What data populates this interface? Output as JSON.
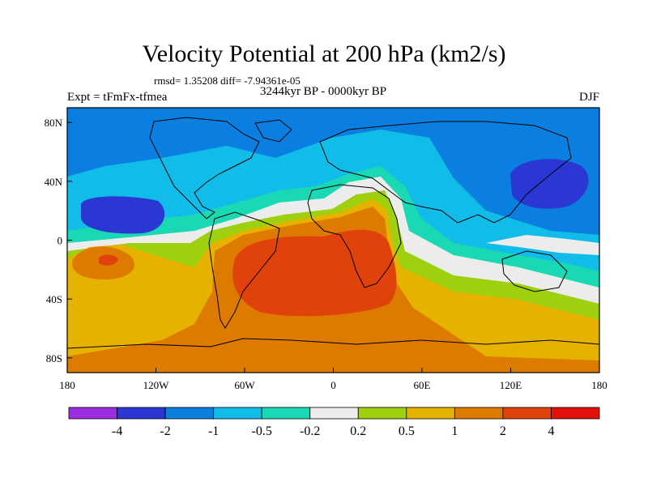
{
  "title": "Velocity Potential at 200 hPa (km2/s)",
  "stats": "rmsd= 1.35208 diff= -7.94361e-05",
  "experiment": "Expt = tFmFx-tfmea",
  "period": "3244kyr BP - 0000kyr BP",
  "season": "DJF",
  "axes": {
    "x_ticks": [
      "180",
      "120W",
      "60W",
      "0",
      "60E",
      "120E",
      "180"
    ],
    "y_ticks": [
      "80N",
      "40N",
      "0",
      "40S",
      "80S"
    ]
  },
  "colorbar": {
    "colors": [
      "#9d2de0",
      "#2b37d3",
      "#0a7fe0",
      "#11bde8",
      "#19d9b4",
      "#ececec",
      "#9fd00f",
      "#e5b200",
      "#dd7a00",
      "#e0420b",
      "#e3100c"
    ],
    "labels": [
      "-4",
      "-2",
      "-1",
      "-0.5",
      "-0.2",
      "0.2",
      "0.5",
      "1",
      "2",
      "4"
    ]
  }
}
